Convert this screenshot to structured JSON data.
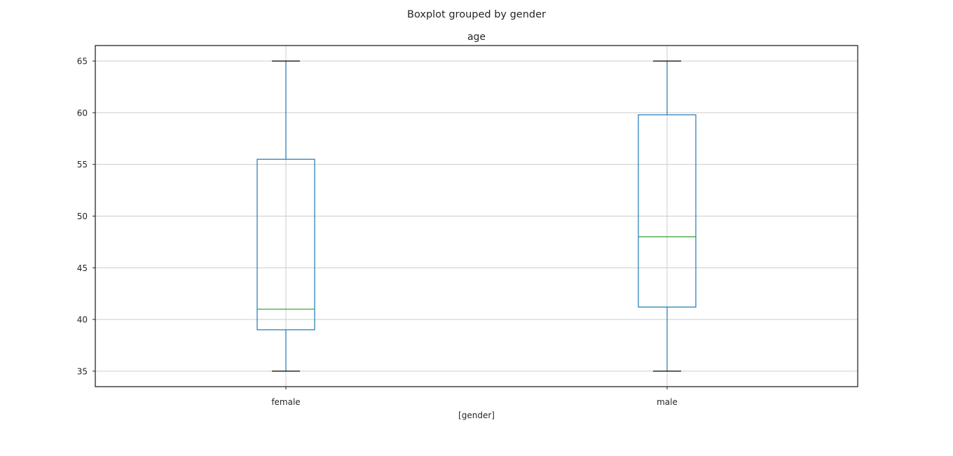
{
  "figure": {
    "suptitle": "Boxplot grouped by gender"
  },
  "chart_data": {
    "type": "box",
    "title": "age",
    "xlabel": "[gender]",
    "ylabel": "",
    "categories": [
      "female",
      "male"
    ],
    "boxes": [
      {
        "category": "female",
        "whisker_low": 35,
        "q1": 39,
        "median": 41,
        "q3": 55.5,
        "whisker_high": 65
      },
      {
        "category": "male",
        "whisker_low": 35,
        "q1": 41.2,
        "median": 48,
        "q3": 59.8,
        "whisker_high": 65
      }
    ],
    "ylim": [
      33.5,
      66.5
    ],
    "yticks": [
      35,
      40,
      45,
      50,
      55,
      60,
      65
    ],
    "grid": true
  },
  "colors": {
    "box": "#1f77b4",
    "median": "#2ca02c",
    "whisker_cap": "#000000",
    "grid": "#cccccc",
    "frame": "#262626",
    "text": "#262626"
  }
}
